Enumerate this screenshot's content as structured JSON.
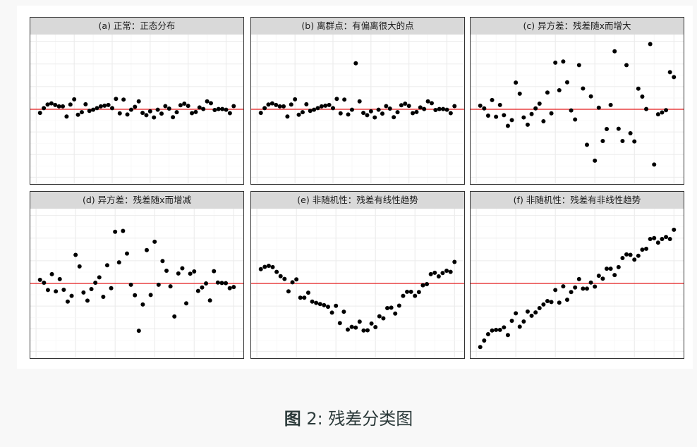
{
  "caption": {
    "label": "图",
    "text": "2: 残差分类图"
  },
  "colors": {
    "points": "#000000",
    "reference_line": "#e31a1c",
    "strip_bg": "#d9d9d9",
    "grid": "#ebebeb"
  },
  "chart_data": [
    {
      "type": "scatter",
      "title": "(a) 正常：正态分布",
      "reference_line_y": 0,
      "grid": true,
      "ylim": [
        -3.3,
        3.3
      ],
      "y": [
        -0.16,
        0.05,
        0.21,
        0.26,
        0.19,
        0.13,
        0.13,
        -0.32,
        0.21,
        0.44,
        -0.24,
        -0.13,
        0.22,
        -0.07,
        -0.02,
        0.05,
        0.13,
        0.16,
        0.19,
        0.05,
        0.46,
        -0.18,
        0.43,
        -0.23,
        -0.02,
        0.11,
        0.35,
        -0.16,
        -0.26,
        -0.09,
        -0.36,
        -0.02,
        -0.19,
        0.14,
        0.03,
        -0.35,
        -0.13,
        0.18,
        0.25,
        0.15,
        -0.17,
        -0.12,
        0.08,
        0.01,
        0.35,
        0.27,
        -0.03,
        0.01,
        0.01,
        -0.02,
        -0.17,
        0.14
      ]
    },
    {
      "type": "scatter",
      "title": "(b) 离群点：有偏离很大的点",
      "reference_line_y": 0,
      "grid": true,
      "ylim": [
        -3.3,
        3.3
      ],
      "y": [
        -0.16,
        0.05,
        0.21,
        0.26,
        0.19,
        0.13,
        0.13,
        -0.32,
        0.21,
        0.44,
        -0.24,
        -0.13,
        0.22,
        -0.07,
        -0.02,
        0.05,
        0.13,
        0.16,
        0.19,
        0.05,
        0.46,
        -0.18,
        0.43,
        -0.23,
        -0.02,
        2.03,
        0.35,
        -0.16,
        -0.26,
        -0.09,
        -0.36,
        -0.02,
        -0.19,
        0.14,
        0.03,
        -0.35,
        -0.13,
        0.18,
        0.25,
        0.15,
        -0.17,
        -0.12,
        0.08,
        0.01,
        0.35,
        0.27,
        -0.03,
        0.01,
        0.01,
        -0.02,
        -0.17,
        0.14
      ]
    },
    {
      "type": "scatter",
      "title": "(c) 异方差：残差随x而增大",
      "reference_line_y": 0,
      "grid": true,
      "ylim": [
        -3.3,
        3.3
      ],
      "y": [
        0.16,
        0.04,
        -0.28,
        0.41,
        -0.33,
        0.19,
        -0.26,
        -0.73,
        -0.48,
        1.18,
        0.69,
        -0.36,
        -0.68,
        -0.21,
        0.04,
        0.25,
        -0.53,
        0.74,
        -0.18,
        2.06,
        0.84,
        2.11,
        1.19,
        -0.05,
        -0.45,
        1.95,
        0.92,
        -1.57,
        0.57,
        -2.27,
        0.07,
        -1.4,
        -0.87,
        0.19,
        2.56,
        -0.86,
        -1.4,
        1.95,
        -1.06,
        -1.42,
        0.91,
        0.56,
        0.01,
        2.88,
        -2.44,
        -0.22,
        -0.14,
        -0.04,
        1.64,
        1.42
      ]
    },
    {
      "type": "scatter",
      "title": "(d) 异方差：残差随x而增减",
      "reference_line_y": 0,
      "grid": true,
      "ylim": [
        -3.3,
        3.3
      ],
      "y": [
        0.16,
        0.03,
        -0.29,
        0.41,
        -0.35,
        0.19,
        -0.28,
        -0.8,
        -0.55,
        1.26,
        0.75,
        -0.4,
        -0.76,
        -0.25,
        0.03,
        0.27,
        -0.59,
        0.8,
        -0.21,
        2.28,
        0.93,
        2.32,
        1.32,
        -0.06,
        -0.52,
        -2.09,
        -0.93,
        1.47,
        -0.51,
        1.84,
        -0.06,
        0.99,
        0.56,
        -0.13,
        -1.46,
        0.44,
        0.67,
        -0.88,
        0.43,
        0.53,
        -0.33,
        -0.18,
        0,
        -0.75,
        0.54,
        0.04,
        0.02,
        0.01,
        -0.21,
        -0.16
      ]
    },
    {
      "type": "scatter",
      "title": "(e) 非随机性：残差有线性趋势",
      "reference_line_y": 0,
      "grid": true,
      "ylim": [
        -3.3,
        3.3
      ],
      "y": [
        0.63,
        0.73,
        0.78,
        0.72,
        0.51,
        0.32,
        0.2,
        -0.35,
        0.05,
        0.18,
        -0.63,
        -0.63,
        -0.41,
        -0.8,
        -0.86,
        -0.91,
        -0.96,
        -1.03,
        -1.29,
        -0.99,
        -1.75,
        -1.25,
        -2.04,
        -1.92,
        -1.95,
        -1.69,
        -2.08,
        -2.07,
        -1.77,
        -1.93,
        -1.45,
        -1.54,
        -1.09,
        -1.07,
        -1.33,
        -0.98,
        -0.55,
        -0.37,
        -0.37,
        -0.55,
        -0.38,
        -0.08,
        -0.03,
        0.41,
        0.47,
        0.31,
        0.46,
        0.56,
        0.51,
        0.95
      ]
    },
    {
      "type": "scatter",
      "title": "(f) 非随机性：残差有非线性趋势",
      "reference_line_y": 0,
      "grid": true,
      "ylim": [
        -3.3,
        3.3
      ],
      "y": [
        -2.81,
        -2.52,
        -2.24,
        -2.08,
        -2.05,
        -2.05,
        -1.94,
        -2.28,
        -1.65,
        -1.32,
        -1.91,
        -1.68,
        -1.24,
        -1.43,
        -1.28,
        -1.09,
        -0.93,
        -0.78,
        -0.82,
        -0.29,
        -0.85,
        -0.13,
        -0.72,
        -0.38,
        -0.18,
        0.19,
        -0.23,
        -0.23,
        0.04,
        -0.14,
        0.34,
        0.21,
        0.65,
        0.65,
        0.37,
        0.72,
        1.12,
        1.28,
        1.26,
        1.05,
        1.22,
        1.49,
        1.53,
        1.96,
        2.0,
        1.8,
        1.96,
        2.05,
        1.96,
        2.37
      ]
    }
  ]
}
